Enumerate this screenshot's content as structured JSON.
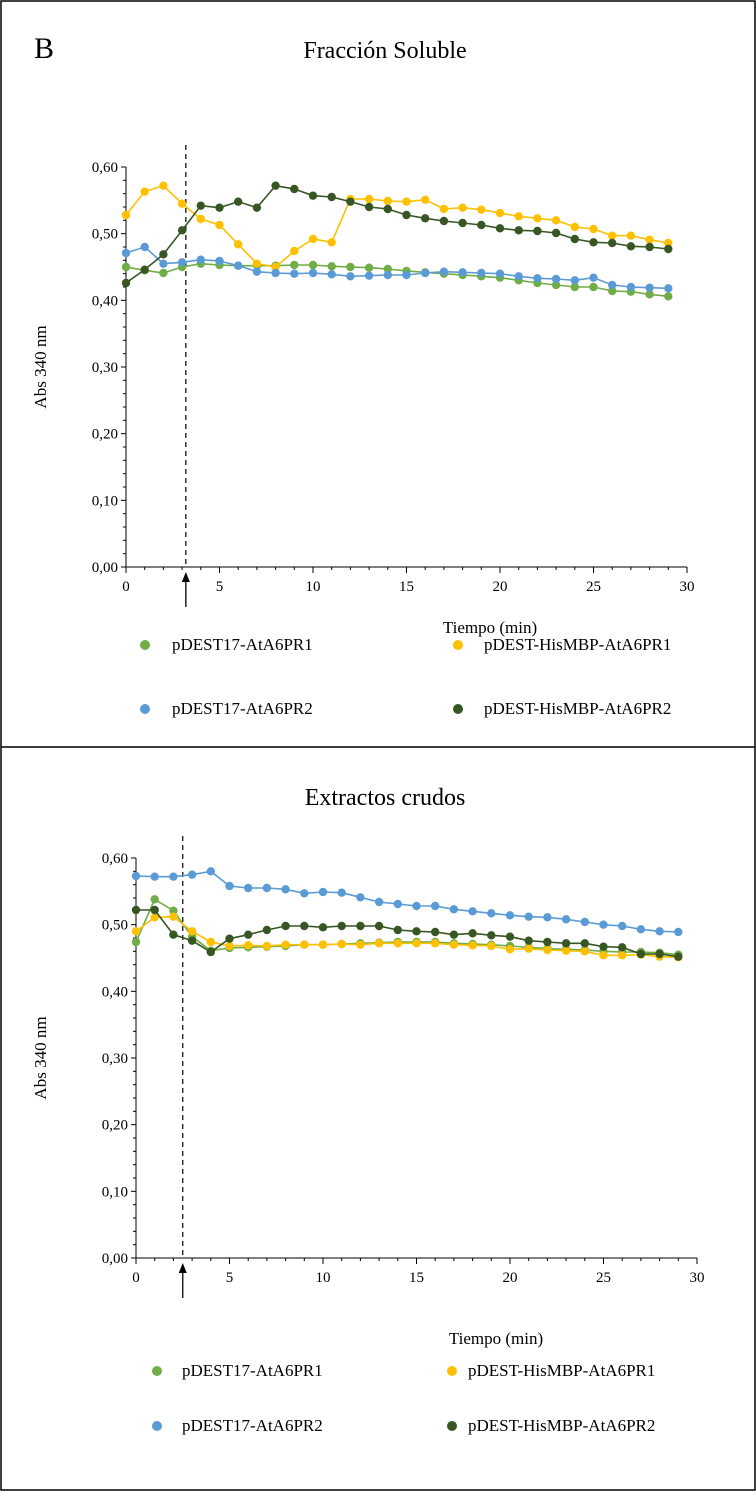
{
  "panel_letter": "B",
  "chart_data": [
    {
      "type": "line",
      "title": "Fracción Soluble",
      "xlabel": "Tiempo (min)",
      "ylabel": "Abs 340 nm",
      "xlim": [
        0,
        30
      ],
      "ylim": [
        0,
        0.6
      ],
      "x_ticks": [
        "0",
        "5",
        "10",
        "15",
        "20",
        "25",
        "30"
      ],
      "y_ticks": [
        "0,00",
        "0,10",
        "0,20",
        "0,30",
        "0,40",
        "0,50",
        "0,60"
      ],
      "marker_x": 3.2,
      "legend": "bottom",
      "grid": false,
      "x": [
        0,
        1,
        2,
        3,
        4,
        5,
        6,
        7,
        8,
        9,
        10,
        11,
        12,
        13,
        14,
        15,
        16,
        17,
        18,
        19,
        20,
        21,
        22,
        23,
        24,
        25,
        26,
        27,
        28,
        29
      ],
      "series": [
        {
          "name": "pDEST17-AtA6PR1",
          "color": "#70ad47",
          "values": [
            0.45,
            0.445,
            0.441,
            0.45,
            0.455,
            0.453,
            0.452,
            0.452,
            0.452,
            0.453,
            0.453,
            0.451,
            0.45,
            0.449,
            0.447,
            0.444,
            0.442,
            0.44,
            0.438,
            0.436,
            0.434,
            0.43,
            0.426,
            0.423,
            0.42,
            0.42,
            0.414,
            0.413,
            0.409,
            0.406
          ]
        },
        {
          "name": "pDEST-HisMBP-AtA6PR1",
          "color": "#ffc000",
          "values": [
            0.528,
            0.563,
            0.572,
            0.545,
            0.522,
            0.513,
            0.484,
            0.455,
            0.45,
            0.474,
            0.492,
            0.487,
            0.552,
            0.552,
            0.549,
            0.548,
            0.551,
            0.537,
            0.539,
            0.536,
            0.531,
            0.526,
            0.523,
            0.52,
            0.51,
            0.507,
            0.497,
            0.497,
            0.491,
            0.486
          ]
        },
        {
          "name": "pDEST17-AtA6PR2",
          "color": "#5b9bd5",
          "values": [
            0.471,
            0.48,
            0.455,
            0.457,
            0.461,
            0.459,
            0.452,
            0.443,
            0.441,
            0.44,
            0.441,
            0.439,
            0.436,
            0.437,
            0.438,
            0.438,
            0.441,
            0.443,
            0.442,
            0.441,
            0.44,
            0.436,
            0.433,
            0.432,
            0.43,
            0.434,
            0.423,
            0.42,
            0.419,
            0.418
          ]
        },
        {
          "name": "pDEST-HisMBP-AtA6PR2",
          "color": "#375623",
          "values": [
            0.426,
            0.446,
            0.469,
            0.505,
            0.542,
            0.539,
            0.548,
            0.539,
            0.572,
            0.567,
            0.557,
            0.555,
            0.548,
            0.54,
            0.537,
            0.528,
            0.523,
            0.519,
            0.516,
            0.513,
            0.508,
            0.505,
            0.504,
            0.501,
            0.492,
            0.487,
            0.486,
            0.481,
            0.48,
            0.477
          ]
        }
      ]
    },
    {
      "type": "line",
      "title": "Extractos crudos",
      "xlabel": "Tiempo (min)",
      "ylabel": "Abs 340 nm",
      "xlim": [
        0,
        30
      ],
      "ylim": [
        0,
        0.6
      ],
      "x_ticks": [
        "0",
        "5",
        "10",
        "15",
        "20",
        "25",
        "30"
      ],
      "y_ticks": [
        "0,00",
        "0,10",
        "0,20",
        "0,30",
        "0,40",
        "0,50",
        "0,60"
      ],
      "marker_x": 2.5,
      "legend": "bottom",
      "grid": false,
      "x": [
        0,
        1,
        2,
        3,
        4,
        5,
        6,
        7,
        8,
        9,
        10,
        11,
        12,
        13,
        14,
        15,
        16,
        17,
        18,
        19,
        20,
        21,
        22,
        23,
        24,
        25,
        26,
        27,
        28,
        29
      ],
      "series": [
        {
          "name": "pDEST17-AtA6PR1",
          "color": "#70ad47",
          "values": [
            0.474,
            0.538,
            0.521,
            0.482,
            0.461,
            0.465,
            0.466,
            0.467,
            0.468,
            0.47,
            0.47,
            0.471,
            0.472,
            0.473,
            0.474,
            0.474,
            0.474,
            0.472,
            0.471,
            0.47,
            0.468,
            0.466,
            0.464,
            0.463,
            0.462,
            0.46,
            0.459,
            0.459,
            0.458,
            0.455
          ]
        },
        {
          "name": "pDEST-HisMBP-AtA6PR1",
          "color": "#ffc000",
          "values": [
            0.49,
            0.511,
            0.512,
            0.49,
            0.474,
            0.468,
            0.469,
            0.468,
            0.47,
            0.47,
            0.47,
            0.471,
            0.47,
            0.472,
            0.472,
            0.472,
            0.472,
            0.47,
            0.469,
            0.468,
            0.463,
            0.464,
            0.462,
            0.461,
            0.46,
            0.454,
            0.454,
            0.455,
            0.452,
            0.451
          ]
        },
        {
          "name": "pDEST17-AtA6PR2",
          "color": "#5b9bd5",
          "values": [
            0.573,
            0.572,
            0.572,
            0.575,
            0.58,
            0.558,
            0.555,
            0.555,
            0.553,
            0.547,
            0.549,
            0.548,
            0.541,
            0.534,
            0.531,
            0.528,
            0.528,
            0.523,
            0.52,
            0.517,
            0.514,
            0.512,
            0.511,
            0.508,
            0.504,
            0.5,
            0.498,
            0.493,
            0.49,
            0.489
          ]
        },
        {
          "name": "pDEST-HisMBP-AtA6PR2",
          "color": "#375623",
          "values": [
            0.522,
            0.522,
            0.485,
            0.476,
            0.459,
            0.479,
            0.485,
            0.492,
            0.498,
            0.498,
            0.496,
            0.498,
            0.498,
            0.498,
            0.492,
            0.49,
            0.489,
            0.485,
            0.487,
            0.484,
            0.482,
            0.476,
            0.474,
            0.472,
            0.472,
            0.467,
            0.466,
            0.456,
            0.456,
            0.452
          ]
        }
      ]
    }
  ]
}
